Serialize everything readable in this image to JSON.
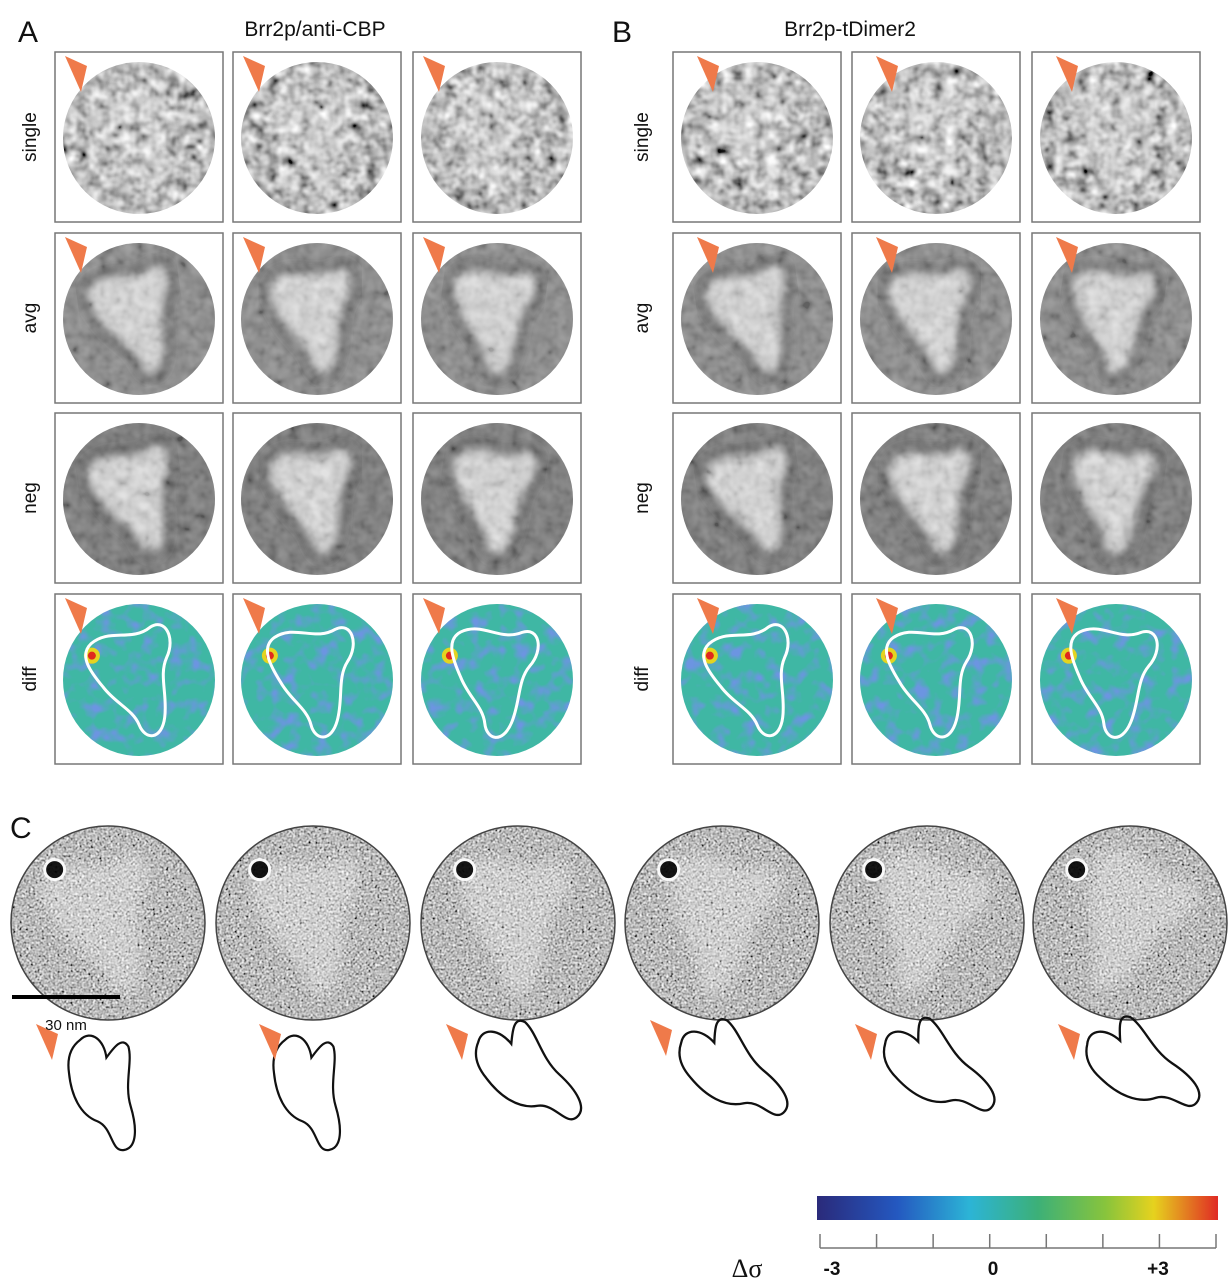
{
  "panels": [
    {
      "label": "A",
      "title": "Brr2p/anti-CBP",
      "rows": [
        "single",
        "avg",
        "neg",
        "diff"
      ]
    },
    {
      "label": "B",
      "title": "Brr2p-tDimer2",
      "rows": [
        "single",
        "avg",
        "neg",
        "diff"
      ]
    }
  ],
  "panel_c": {
    "label": "C"
  },
  "scale_bar": {
    "label": "30 nm"
  },
  "colorbar": {
    "symbol": "Δσ",
    "ticks": [
      "-3",
      "0",
      "+3"
    ]
  }
}
